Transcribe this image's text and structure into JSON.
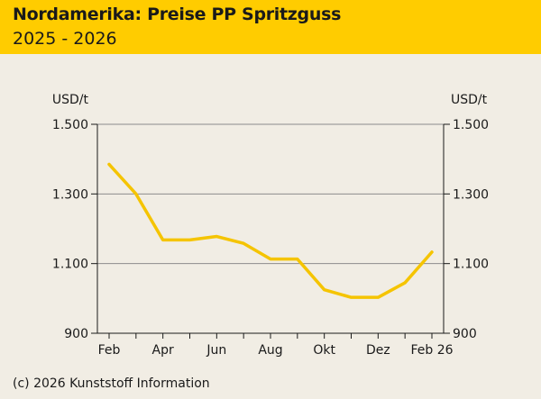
{
  "header": {
    "title": "Nordamerika: Preise PP Spritzguss",
    "subtitle": "2025 - 2026"
  },
  "footer": {
    "source": "(c) 2026 Kunststoff Information"
  },
  "colors": {
    "header_bg": "#ffcc00",
    "line": "#f5c400",
    "background": "#f1ede4",
    "grid": "#8c8c8c"
  },
  "chart_data": {
    "type": "line",
    "title": "Nordamerika: Preise PP Spritzguss",
    "subtitle": "2025 - 2026",
    "ylabel_left": "USD/t",
    "ylabel_right": "USD/t",
    "ylim": [
      900,
      1500
    ],
    "yticks": [
      900,
      1100,
      1300,
      1500
    ],
    "ytick_labels": [
      "900",
      "1.100",
      "1.300",
      "1.500"
    ],
    "x_tick_labels": [
      "Feb",
      "Apr",
      "Jun",
      "Aug",
      "Okt",
      "Dez",
      "Feb 26"
    ],
    "grid": true,
    "x": [
      "Feb 2025",
      "Mär 2025",
      "Apr 2025",
      "Mai 2025",
      "Jun 2025",
      "Jul 2025",
      "Aug 2025",
      "Sep 2025",
      "Okt 2025",
      "Nov 2025",
      "Dez 2025",
      "Jan 2026",
      "Feb 2026"
    ],
    "series": [
      {
        "values": [
          1385,
          1300,
          1168,
          1168,
          1178,
          1158,
          1113,
          1113,
          1025,
          1003,
          1003,
          1045,
          1133
        ]
      }
    ]
  }
}
